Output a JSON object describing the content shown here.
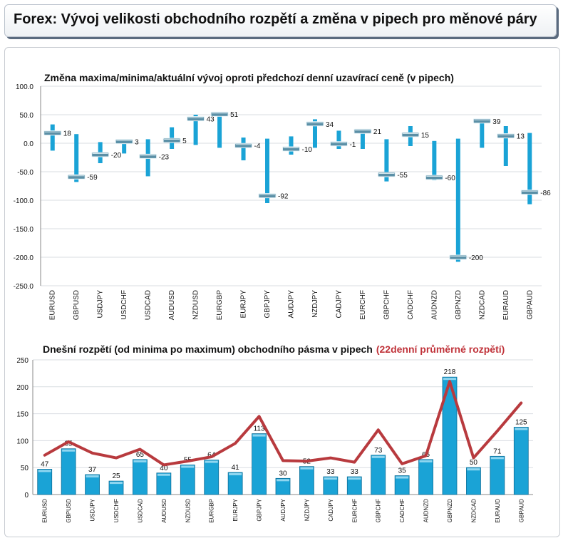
{
  "header": {
    "title": "Forex: Vývoj velikosti obchodního rozpětí a změna v pipech pro měnové páry"
  },
  "colors": {
    "bar": "#1aa3d6",
    "bar_dark": "#0e6f99",
    "marker": "#5b8fa6",
    "average_line": "#b83a3e",
    "title_accent": "#c0333a"
  },
  "chart_data": [
    {
      "type": "bar",
      "subtype": "high-low-close",
      "title": "Změna maxima/minima/aktuální vývoj oproti předchozí denní uzavírací ceně (v pipech)",
      "ylim": [
        -250,
        100
      ],
      "yticks": [
        "100.0",
        "50.0",
        "0.0",
        "-50.0",
        "-100.0",
        "-150.0",
        "-200.0",
        "-250.0"
      ],
      "grid": true,
      "categories": [
        "EURUSD",
        "GBPUSD",
        "USDJPY",
        "USDCHF",
        "USDCAD",
        "AUDUSD",
        "NZDUSD",
        "EURGBP",
        "EURJPY",
        "GBPJPY",
        "AUDJPY",
        "NZDJPY",
        "CADJPY",
        "EURCHF",
        "GBPCHF",
        "CADCHF",
        "AUDNZD",
        "GBPNZD",
        "NZDCAD",
        "EURAUD",
        "GBPAUD"
      ],
      "series": [
        {
          "name": "max",
          "values": [
            33,
            16,
            2,
            6,
            7,
            28,
            50,
            55,
            10,
            8,
            12,
            42,
            22,
            25,
            7,
            30,
            4,
            8,
            43,
            30,
            18
          ]
        },
        {
          "name": "min",
          "values": [
            -13,
            -68,
            -35,
            -18,
            -58,
            -10,
            -3,
            -8,
            -30,
            -105,
            -20,
            -8,
            -10,
            -10,
            -67,
            -5,
            -65,
            -208,
            -8,
            -40,
            -107
          ]
        },
        {
          "name": "close",
          "values": [
            18,
            -59,
            -20,
            3,
            -23,
            5,
            43,
            51,
            -4,
            -92,
            -10,
            34,
            -1,
            21,
            -55,
            15,
            -60,
            -200,
            39,
            13,
            -86
          ]
        }
      ],
      "data_labels": [
        "18",
        "-59",
        "-20",
        "3",
        "-23",
        "5",
        "43",
        "51",
        "-4",
        "-92",
        "-10",
        "34",
        "-1",
        "21",
        "-55",
        "15",
        "-60",
        "-200",
        "39",
        "13",
        "-86"
      ]
    },
    {
      "type": "bar",
      "title": "Dnešní rozpětí (od minima po maximum) obchodního pásma v pipech",
      "title_accent": "(22denní průměrné rozpětí)",
      "ylim": [
        0,
        250
      ],
      "yticks": [
        "250",
        "200",
        "150",
        "100",
        "50",
        "0"
      ],
      "grid": true,
      "categories": [
        "EURUSD",
        "GBPUSD",
        "USDJPY",
        "USDCHF",
        "USDCAD",
        "AUDUSD",
        "NZDUSD",
        "EURGBP",
        "EURJPY",
        "GBPJPY",
        "AUDJPY",
        "NZDJPY",
        "CADJPY",
        "EURCHF",
        "GBPCHF",
        "CADCHF",
        "AUDNZD",
        "GBPNZD",
        "NZDCAD",
        "EURAUD",
        "GBPAUD"
      ],
      "series": [
        {
          "name": "range",
          "values": [
            47,
            85,
            37,
            25,
            65,
            40,
            55,
            64,
            41,
            113,
            30,
            52,
            33,
            33,
            73,
            35,
            65,
            218,
            50,
            71,
            125
          ]
        },
        {
          "name": "avg22",
          "values": [
            73,
            98,
            77,
            68,
            84,
            55,
            62,
            70,
            95,
            145,
            63,
            62,
            68,
            60,
            120,
            57,
            72,
            210,
            68,
            118,
            170
          ]
        }
      ],
      "data_labels": [
        "47",
        "85",
        "37",
        "25",
        "65",
        "40",
        "55",
        "64",
        "41",
        "113",
        "30",
        "52",
        "33",
        "33",
        "73",
        "35",
        "65",
        "218",
        "50",
        "71",
        "125"
      ]
    }
  ]
}
